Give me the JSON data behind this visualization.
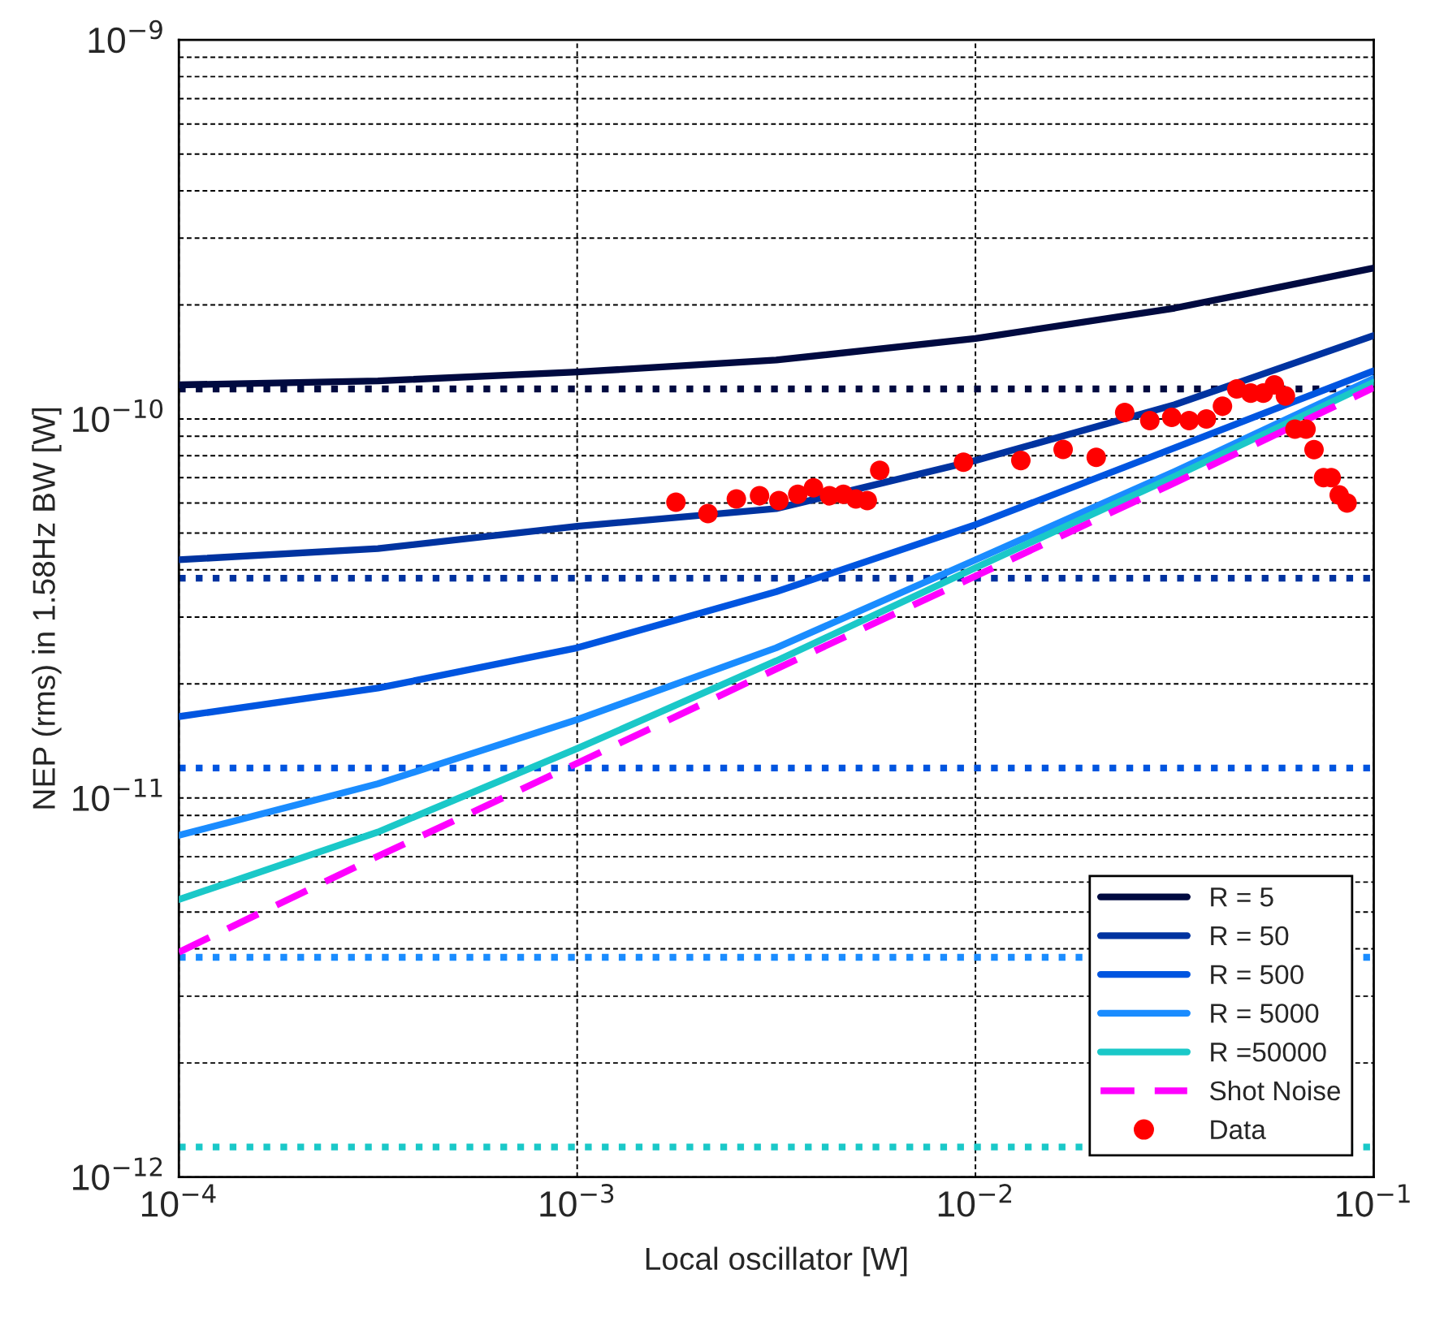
{
  "chart_data": {
    "type": "line",
    "xlabel": "Local oscillator [W]",
    "ylabel": "NEP (rms) in 1.58Hz BW [W]",
    "log": "xy",
    "grid": true,
    "legend": "bottom right",
    "xlim": [
      0.0001,
      0.1
    ],
    "ylim": [
      1e-12,
      1e-09
    ],
    "xticks": [
      {
        "value": 0.0001,
        "label": "10$^{−4}$"
      },
      {
        "value": 0.001,
        "label": "10$^{−3}$"
      },
      {
        "value": 0.01,
        "label": "10$^{−2}$"
      },
      {
        "value": 0.1,
        "label": "10$^{−1}$"
      }
    ],
    "yticks": [
      {
        "value": 1e-12,
        "label": "10$^{−12}$"
      },
      {
        "value": 1e-11,
        "label": "10$^{−11}$"
      },
      {
        "value": 1e-10,
        "label": "10$^{−10}$"
      },
      {
        "value": 1e-09,
        "label": "10$^{−9}$"
      }
    ],
    "series": [
      {
        "name": "R = 5",
        "line_style": "solid",
        "marker": "none",
        "color": "#000a40",
        "x": [
          0.0001,
          0.000316,
          0.001,
          0.00316,
          0.01,
          0.0316,
          0.1
        ],
        "values": [
          1.23e-10,
          1.26e-10,
          1.33e-10,
          1.43e-10,
          1.63e-10,
          1.96e-10,
          2.5e-10
        ]
      },
      {
        "name": "R = 50",
        "line_style": "solid",
        "marker": "none",
        "color": "#0033a0",
        "x": [
          0.0001,
          0.000316,
          0.001,
          0.00316,
          0.01,
          0.0316,
          0.1
        ],
        "values": [
          4.25e-11,
          4.55e-11,
          5.21e-11,
          5.8e-11,
          7.77e-11,
          1.09e-10,
          1.66e-10
        ]
      },
      {
        "name": "R = 500",
        "line_style": "solid",
        "marker": "none",
        "color": "#0055e0",
        "x": [
          0.0001,
          0.000316,
          0.001,
          0.00316,
          0.01,
          0.0316,
          0.1
        ],
        "values": [
          1.64e-11,
          1.95e-11,
          2.49e-11,
          3.5e-11,
          5.26e-11,
          8.39e-11,
          1.34e-10
        ]
      },
      {
        "name": "R = 5000",
        "line_style": "solid",
        "marker": "none",
        "color": "#1a8cff",
        "x": [
          0.0001,
          0.000316,
          0.001,
          0.00316,
          0.01,
          0.0316,
          0.1
        ],
        "values": [
          7.97e-12,
          1.09e-11,
          1.61e-11,
          2.49e-11,
          4.25e-11,
          7.26e-11,
          1.28e-10
        ]
      },
      {
        "name": "R =50000",
        "line_style": "solid",
        "marker": "none",
        "color": "#1ac8c8",
        "x": [
          0.0001,
          0.000316,
          0.001,
          0.00316,
          0.01,
          0.0316,
          0.1
        ],
        "values": [
          5.4e-12,
          8.13e-12,
          1.35e-11,
          2.3e-11,
          4.05e-11,
          7.05e-11,
          1.25e-10
        ]
      },
      {
        "name": "Shot Noise",
        "line_style": "dashed",
        "marker": "none",
        "color": "#ff00ff",
        "x": [
          0.0001,
          0.000316,
          0.001,
          0.00316,
          0.01,
          0.0316,
          0.1
        ],
        "values": [
          3.92e-12,
          7.02e-12,
          1.235e-11,
          2.19e-11,
          3.85e-11,
          6.78e-11,
          1.21e-10
        ]
      },
      {
        "name": "Data",
        "type": "scatter",
        "marker": "circle",
        "color": "#ff0000",
        "x": [
          0.00177,
          0.00213,
          0.00251,
          0.00287,
          0.00321,
          0.00358,
          0.00392,
          0.0043,
          0.00466,
          0.00501,
          0.00535,
          0.00575,
          0.00933,
          0.013,
          0.0166,
          0.0201,
          0.0237,
          0.0274,
          0.0311,
          0.0344,
          0.038,
          0.0417,
          0.0453,
          0.0491,
          0.0528,
          0.0563,
          0.06,
          0.0634,
          0.0676,
          0.0708,
          0.0748,
          0.0782,
          0.0819,
          0.0857
        ],
        "values": [
          6.03e-11,
          5.63e-11,
          6.15e-11,
          6.27e-11,
          6.09e-11,
          6.33e-11,
          6.58e-11,
          6.27e-11,
          6.33e-11,
          6.15e-11,
          6.09e-11,
          7.32e-11,
          7.69e-11,
          7.77e-11,
          8.31e-11,
          7.92e-11,
          1.04e-10,
          9.9e-11,
          1.01e-10,
          9.9e-11,
          1e-10,
          1.08e-10,
          1.2e-10,
          1.17e-10,
          1.17e-10,
          1.23e-10,
          1.15e-10,
          9.4e-11,
          9.4e-11,
          8.3e-11,
          7e-11,
          7e-11,
          6.3e-11,
          6e-11
        ]
      }
    ],
    "ref_lines": [
      {
        "axis": "y",
        "value": 1.2e-10,
        "color": "#000a40",
        "line_style": "dotted"
      },
      {
        "axis": "y",
        "value": 3.8e-11,
        "color": "#0033a0",
        "line_style": "dotted"
      },
      {
        "axis": "y",
        "value": 1.2e-11,
        "color": "#0055e0",
        "line_style": "dotted"
      },
      {
        "axis": "y",
        "value": 3.8e-12,
        "color": "#1a8cff",
        "line_style": "dotted"
      },
      {
        "axis": "y",
        "value": 1.2e-12,
        "color": "#1ac8c8",
        "line_style": "dotted"
      }
    ]
  }
}
